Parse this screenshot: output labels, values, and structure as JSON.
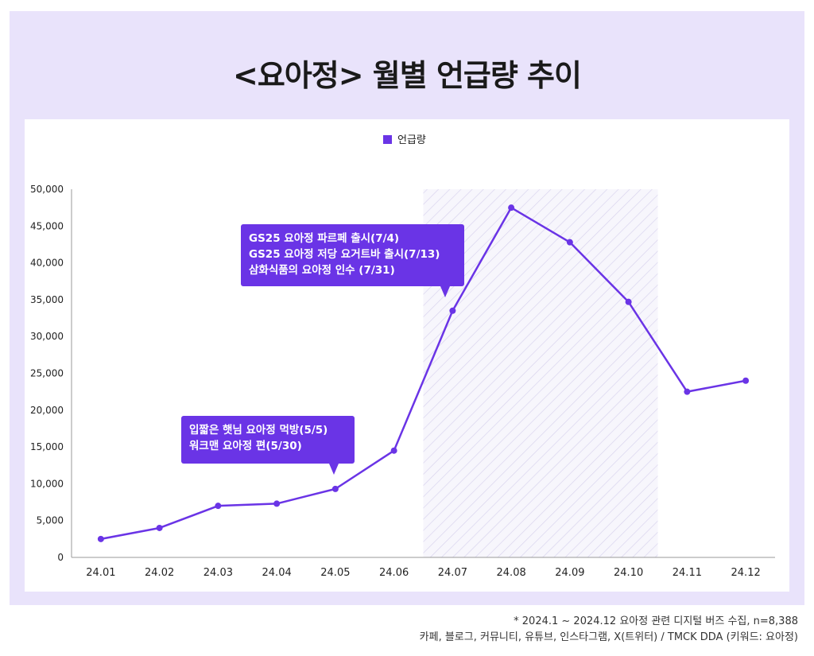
{
  "title": "<요아정> 월별 언급량 추이",
  "colors": {
    "panel_bg": "#e9e3fb",
    "accent": "#6a34e6",
    "highlight_hatch": "#d9d4ee",
    "grid": "#cccccc"
  },
  "chart_data": {
    "type": "line",
    "legend": [
      "언급량"
    ],
    "legend_position": "top-center",
    "categories": [
      "24.01",
      "24.02",
      "24.03",
      "24.04",
      "24.05",
      "24.06",
      "24.07",
      "24.08",
      "24.09",
      "24.10",
      "24.11",
      "24.12"
    ],
    "series": [
      {
        "name": "언급량",
        "values": [
          2500,
          4000,
          7000,
          7300,
          9300,
          14500,
          33500,
          47500,
          42800,
          34700,
          22500,
          24000
        ]
      }
    ],
    "ylim": [
      0,
      50000
    ],
    "yticks": [
      0,
      5000,
      10000,
      15000,
      20000,
      25000,
      30000,
      35000,
      40000,
      45000,
      50000
    ],
    "ytick_labels": [
      "0",
      "5,000",
      "10,000",
      "15,000",
      "20,000",
      "25,000",
      "30,000",
      "35,000",
      "40,000",
      "45,000",
      "50,000"
    ],
    "highlight_range": [
      "24.07",
      "24.10"
    ],
    "annotations": [
      {
        "target": "24.05",
        "lines": [
          "입짧은 햇님 요아정 먹방(5/5)",
          "워크맨 요아정 편(5/30)"
        ]
      },
      {
        "target": "24.07",
        "lines": [
          "GS25 요아정 파르페 출시(7/4)",
          "GS25 요아정 저당 요거트바 출시(7/13)",
          "삼화식품의 요아정 인수 (7/31)"
        ]
      }
    ]
  },
  "footer": {
    "line1": "* 2024.1 ~ 2024.12 요아정 관련 디지털 버즈 수집, n=8,388",
    "line2": "카페, 블로그, 커뮤니티, 유튜브, 인스타그램, X(트위터) / TMCK DDA (키워드: 요아정)"
  }
}
